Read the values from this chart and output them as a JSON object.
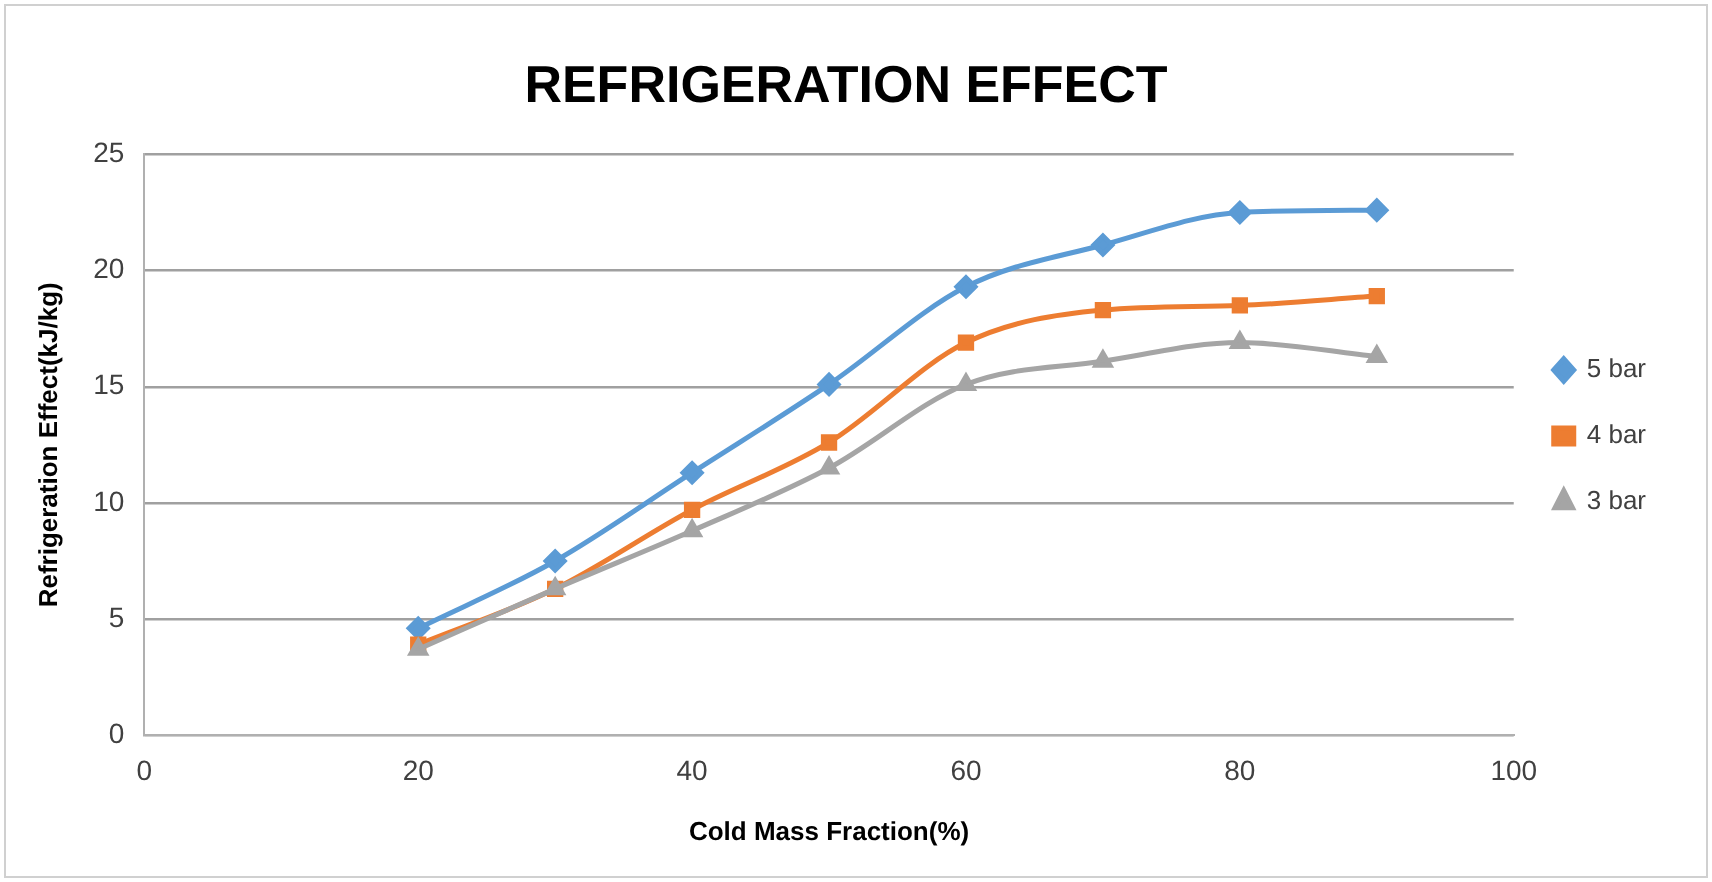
{
  "chart_data": {
    "type": "line",
    "title": "REFRIGERATION EFFECT",
    "xlabel": "Cold Mass Fraction(%)",
    "ylabel": "Refrigeration Effect(kJ/kg)",
    "x": [
      20,
      30,
      40,
      50,
      60,
      70,
      80,
      90
    ],
    "series": [
      {
        "name": "5 bar",
        "color": "#5b9bd5",
        "marker": "diamond",
        "values": [
          4.6,
          7.5,
          11.3,
          15.1,
          19.3,
          21.1,
          22.5,
          22.6
        ]
      },
      {
        "name": "4 bar",
        "color": "#ed7d31",
        "marker": "square",
        "values": [
          3.9,
          6.3,
          9.7,
          12.6,
          16.9,
          18.3,
          18.5,
          18.9
        ]
      },
      {
        "name": "3 bar",
        "color": "#a5a5a5",
        "marker": "triangle",
        "values": [
          3.7,
          6.3,
          8.8,
          11.5,
          15.1,
          16.1,
          16.9,
          16.3
        ]
      }
    ],
    "xlim": [
      0,
      100
    ],
    "xticks": [
      0,
      20,
      40,
      60,
      80,
      100
    ],
    "ylim": [
      0,
      25
    ],
    "yticks": [
      0,
      5,
      10,
      15,
      20,
      25
    ],
    "grid": "y",
    "legend": "right"
  }
}
